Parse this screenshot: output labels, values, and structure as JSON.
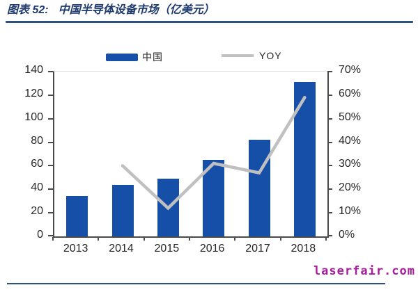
{
  "figure": {
    "label": "图表 52:",
    "title": "中国半导体设备市场（亿美元）"
  },
  "watermark": "laserfair.com",
  "colors": {
    "bar": "#164fa8",
    "line": "#c0c0c0",
    "title": "#1e3a6e",
    "rule": "#2e5184",
    "axis": "#4a4a4a",
    "tick_label": "#262626",
    "watermark": "#a81c9e"
  },
  "chart_data": {
    "type": "bar",
    "title": "中国半导体设备市场（亿美元）",
    "categories": [
      "2013",
      "2014",
      "2015",
      "2016",
      "2017",
      "2018"
    ],
    "series": [
      {
        "name": "中国",
        "type": "bar",
        "axis": "left",
        "values": [
          34,
          44,
          49,
          65,
          82,
          131
        ]
      },
      {
        "name": "YOY",
        "type": "line",
        "axis": "right",
        "values": [
          null,
          30,
          12,
          31,
          27,
          59
        ],
        "unit": "%"
      }
    ],
    "left_axis": {
      "min": 0,
      "max": 140,
      "step": 20,
      "ticks": [
        "0",
        "20",
        "40",
        "60",
        "80",
        "100",
        "120",
        "140"
      ]
    },
    "right_axis": {
      "min": 0,
      "max": 70,
      "step": 10,
      "ticks": [
        "0%",
        "10%",
        "20%",
        "30%",
        "40%",
        "50%",
        "60%",
        "70%"
      ]
    },
    "legend": [
      {
        "label": "中国",
        "swatch": "bar"
      },
      {
        "label": "YOY",
        "swatch": "line"
      }
    ],
    "grid": false,
    "legend_position": "top-center"
  }
}
